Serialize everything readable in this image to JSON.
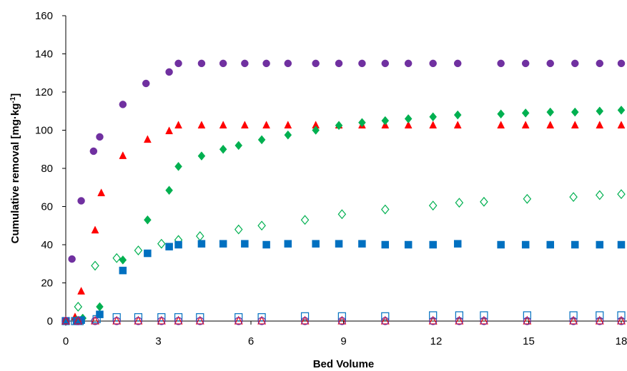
{
  "chart_data": {
    "type": "scatter",
    "title": "",
    "xlabel": "Bed Volume",
    "ylabel": "Cumulative removal [mg·kg",
    "ylabel_sup": "-1",
    "ylabel_tail": "]",
    "xlim": [
      0,
      18
    ],
    "ylim": [
      0,
      160
    ],
    "x_ticks": [
      0,
      3,
      6,
      9,
      12,
      15,
      18
    ],
    "y_ticks": [
      0,
      20,
      40,
      60,
      80,
      100,
      120,
      140,
      160
    ],
    "grid": false,
    "legend": "none",
    "series": [
      {
        "marker": "circle",
        "fill": true,
        "color": "#7030A0",
        "points": [
          [
            0,
            0
          ],
          [
            0.2,
            32.5
          ],
          [
            0.5,
            63
          ],
          [
            0.9,
            89
          ],
          [
            1.1,
            96.5
          ],
          [
            1.85,
            113.5
          ],
          [
            2.6,
            124.5
          ],
          [
            3.35,
            130.5
          ],
          [
            3.65,
            135
          ],
          [
            4.4,
            135
          ],
          [
            5.1,
            135
          ],
          [
            5.8,
            135
          ],
          [
            6.5,
            135
          ],
          [
            7.2,
            135
          ],
          [
            8.1,
            135
          ],
          [
            8.85,
            135
          ],
          [
            9.6,
            135
          ],
          [
            10.35,
            135
          ],
          [
            11.1,
            135
          ],
          [
            11.9,
            135
          ],
          [
            12.7,
            135
          ],
          [
            14.1,
            135
          ],
          [
            14.9,
            135
          ],
          [
            15.7,
            135
          ],
          [
            16.5,
            135
          ],
          [
            17.3,
            135
          ],
          [
            18,
            135
          ]
        ]
      },
      {
        "marker": "triangle",
        "fill": true,
        "color": "#FF0000",
        "points": [
          [
            0,
            0
          ],
          [
            0.3,
            2
          ],
          [
            0.5,
            15.5
          ],
          [
            0.95,
            47.5
          ],
          [
            1.15,
            67
          ],
          [
            1.85,
            86.5
          ],
          [
            2.65,
            95
          ],
          [
            3.35,
            99.5
          ],
          [
            3.65,
            102.5
          ],
          [
            4.4,
            102.5
          ],
          [
            5.1,
            102.5
          ],
          [
            5.8,
            102.5
          ],
          [
            6.5,
            102.5
          ],
          [
            7.2,
            102.5
          ],
          [
            8.1,
            102.5
          ],
          [
            8.85,
            102.5
          ],
          [
            9.6,
            102.5
          ],
          [
            10.35,
            102.5
          ],
          [
            11.1,
            102.5
          ],
          [
            11.9,
            102.5
          ],
          [
            12.7,
            102.5
          ],
          [
            14.1,
            102.5
          ],
          [
            14.9,
            102.5
          ],
          [
            15.7,
            102.5
          ],
          [
            16.5,
            102.5
          ],
          [
            17.3,
            102.5
          ],
          [
            18,
            102.5
          ]
        ]
      },
      {
        "marker": "diamond",
        "fill": true,
        "color": "#00B050",
        "points": [
          [
            0,
            0
          ],
          [
            0.35,
            0.5
          ],
          [
            0.55,
            1.5
          ],
          [
            1.1,
            7.5
          ],
          [
            1.85,
            32
          ],
          [
            2.65,
            53
          ],
          [
            3.35,
            68.5
          ],
          [
            3.65,
            81
          ],
          [
            4.4,
            86.5
          ],
          [
            5.1,
            90
          ],
          [
            5.6,
            92
          ],
          [
            6.35,
            95
          ],
          [
            7.2,
            97.5
          ],
          [
            8.1,
            100
          ],
          [
            8.85,
            102.5
          ],
          [
            9.6,
            104
          ],
          [
            10.35,
            105
          ],
          [
            11.1,
            106
          ],
          [
            11.9,
            107
          ],
          [
            12.7,
            108
          ],
          [
            14.1,
            108.5
          ],
          [
            14.9,
            109
          ],
          [
            15.7,
            109.5
          ],
          [
            16.5,
            109.5
          ],
          [
            17.3,
            110
          ],
          [
            18,
            110.5
          ]
        ]
      },
      {
        "marker": "diamond",
        "fill": false,
        "color": "#00B050",
        "points": [
          [
            0,
            0
          ],
          [
            0.4,
            7.5
          ],
          [
            0.95,
            29
          ],
          [
            1.65,
            33
          ],
          [
            2.35,
            37
          ],
          [
            3.1,
            40.5
          ],
          [
            3.65,
            42.5
          ],
          [
            4.35,
            44.5
          ],
          [
            5.6,
            48
          ],
          [
            6.35,
            50
          ],
          [
            7.75,
            53
          ],
          [
            8.95,
            56
          ],
          [
            10.35,
            58.5
          ],
          [
            11.9,
            60.5
          ],
          [
            12.75,
            62
          ],
          [
            13.55,
            62.5
          ],
          [
            14.95,
            64
          ],
          [
            16.45,
            65
          ],
          [
            17.3,
            66
          ],
          [
            18,
            66.5
          ]
        ]
      },
      {
        "marker": "square",
        "fill": true,
        "color": "#0070C0",
        "points": [
          [
            0,
            0
          ],
          [
            0.35,
            0
          ],
          [
            0.5,
            0.5
          ],
          [
            1.1,
            3.5
          ],
          [
            1.85,
            26.5
          ],
          [
            2.65,
            35.5
          ],
          [
            3.35,
            39
          ],
          [
            3.65,
            40
          ],
          [
            4.4,
            40.5
          ],
          [
            5.1,
            40.5
          ],
          [
            5.8,
            40.5
          ],
          [
            6.5,
            40
          ],
          [
            7.2,
            40.5
          ],
          [
            8.1,
            40.5
          ],
          [
            8.85,
            40.5
          ],
          [
            9.6,
            40.5
          ],
          [
            10.35,
            40
          ],
          [
            11.1,
            40
          ],
          [
            11.9,
            40
          ],
          [
            12.7,
            40.5
          ],
          [
            14.1,
            40
          ],
          [
            14.9,
            40
          ],
          [
            15.7,
            40
          ],
          [
            16.5,
            40
          ],
          [
            17.3,
            40
          ],
          [
            18,
            40
          ]
        ]
      },
      {
        "marker": "square",
        "fill": false,
        "color": "#0070C0",
        "points": [
          [
            0,
            0
          ],
          [
            0.3,
            0
          ],
          [
            0.45,
            0
          ],
          [
            1,
            1
          ],
          [
            1.65,
            2
          ],
          [
            2.35,
            2
          ],
          [
            3.1,
            2
          ],
          [
            3.65,
            2
          ],
          [
            4.35,
            2
          ],
          [
            5.6,
            2
          ],
          [
            6.35,
            2
          ],
          [
            7.75,
            2.5
          ],
          [
            8.95,
            2.5
          ],
          [
            10.35,
            2.5
          ],
          [
            11.9,
            3
          ],
          [
            12.75,
            3
          ],
          [
            13.55,
            3
          ],
          [
            14.95,
            3
          ],
          [
            16.45,
            3
          ],
          [
            17.3,
            3
          ],
          [
            18,
            3
          ]
        ]
      },
      {
        "marker": "triangle",
        "fill": false,
        "color": "#FF0000",
        "points": [
          [
            0,
            0
          ],
          [
            0.4,
            0
          ],
          [
            0.95,
            0
          ],
          [
            1.65,
            0
          ],
          [
            2.35,
            0
          ],
          [
            3.1,
            0
          ],
          [
            3.65,
            0
          ],
          [
            4.35,
            0
          ],
          [
            5.6,
            0
          ],
          [
            6.35,
            0
          ],
          [
            7.75,
            0
          ],
          [
            8.95,
            0
          ],
          [
            10.35,
            0
          ],
          [
            11.9,
            0
          ],
          [
            12.75,
            0
          ],
          [
            13.55,
            0
          ],
          [
            14.95,
            0
          ],
          [
            16.45,
            0
          ],
          [
            17.3,
            0
          ],
          [
            18,
            0
          ]
        ]
      },
      {
        "marker": "circle",
        "fill": false,
        "color": "#7030A0",
        "points": [
          [
            0,
            0
          ],
          [
            0.4,
            0
          ],
          [
            0.95,
            0
          ],
          [
            1.65,
            0
          ],
          [
            2.35,
            0
          ],
          [
            3.1,
            0
          ],
          [
            3.65,
            0
          ],
          [
            4.35,
            0
          ],
          [
            5.6,
            0
          ],
          [
            6.35,
            0
          ],
          [
            7.75,
            0
          ],
          [
            8.95,
            0
          ],
          [
            10.35,
            0
          ],
          [
            11.9,
            0
          ],
          [
            12.75,
            0
          ],
          [
            13.55,
            0
          ],
          [
            14.95,
            0
          ],
          [
            16.45,
            0
          ],
          [
            17.3,
            0
          ],
          [
            18,
            0
          ]
        ]
      }
    ]
  }
}
